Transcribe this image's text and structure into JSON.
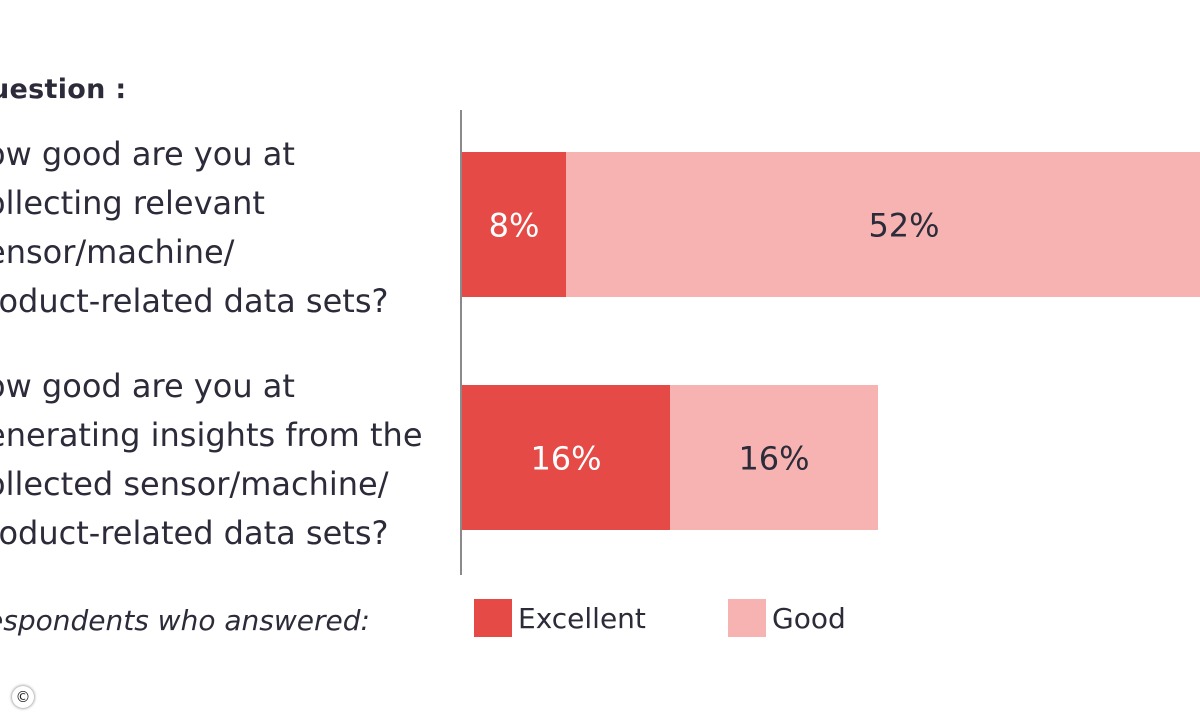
{
  "chart_data": {
    "type": "bar",
    "orientation": "horizontal",
    "stacked": true,
    "header": "uestion :",
    "categories": [
      "ow good are you at\nollecting relevant\nensor/machine/\nroduct-related data sets?",
      "ow good are you at\nenerating insights from the\nollected sensor/machine/\nroduct-related data sets?"
    ],
    "series": [
      {
        "name": "Excellent",
        "values": [
          8,
          16
        ],
        "labels": [
          "8%",
          "16%"
        ],
        "color": "#e54a46",
        "label_color": "#ffffff"
      },
      {
        "name": "Good",
        "values": [
          52,
          16
        ],
        "labels": [
          "52%",
          "16%"
        ],
        "color": "#f6b3b1",
        "label_color": "#2b2b3a"
      }
    ],
    "legend_title": "espondents who answered:",
    "legend_position": "bottom",
    "grid": false,
    "xlim": [
      0,
      60
    ]
  },
  "copyright_symbol": "©"
}
